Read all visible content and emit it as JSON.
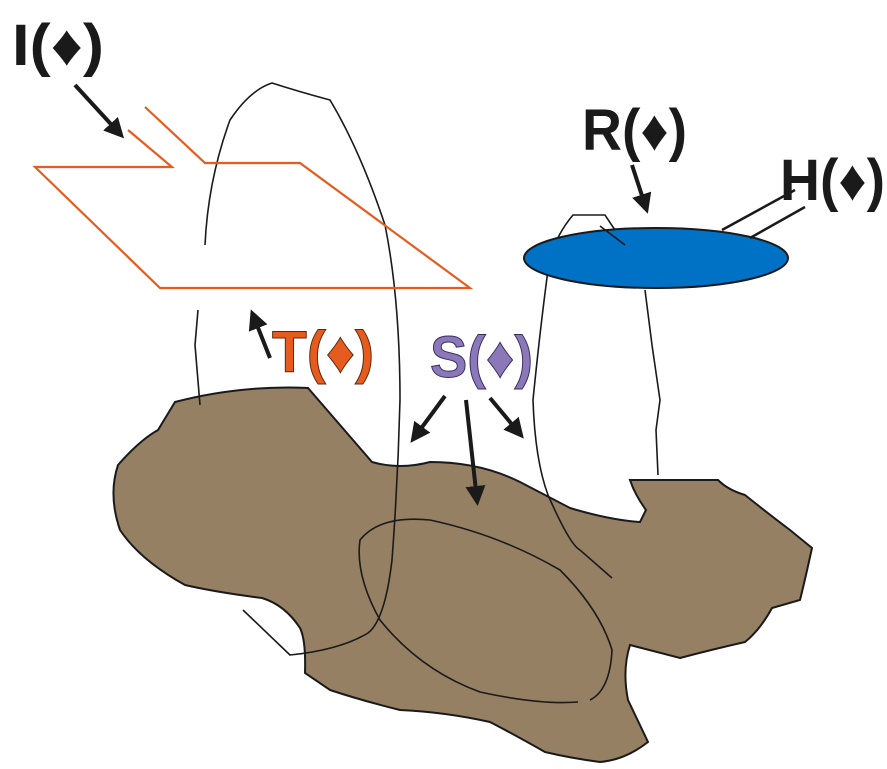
{
  "labels": {
    "I": "I(♦)",
    "R": "R(♦)",
    "H": "H(♦)",
    "T": "T(♦)",
    "S": "S(♦)"
  }
}
